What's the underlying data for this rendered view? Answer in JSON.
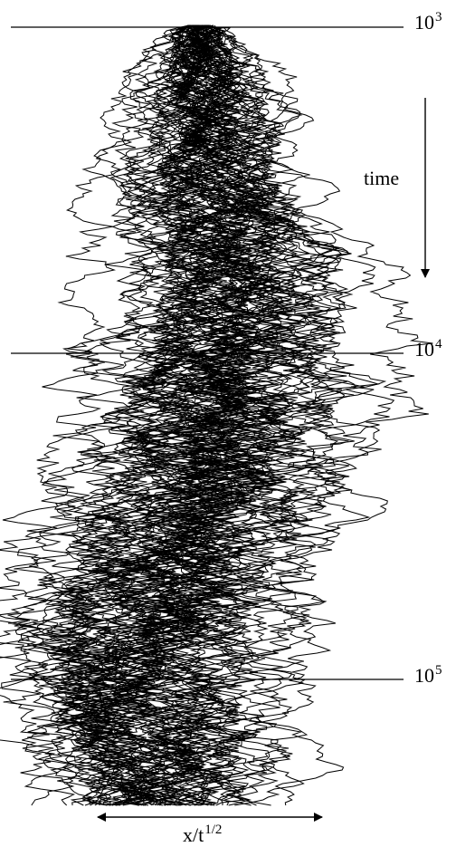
{
  "figure": {
    "time_label": "time",
    "x_axis_label": {
      "base": "x/t",
      "exponent": "1/2"
    },
    "time_markers": [
      {
        "base": "10",
        "exponent": "3"
      },
      {
        "base": "10",
        "exponent": "4"
      },
      {
        "base": "10",
        "exponent": "5"
      }
    ]
  },
  "colors": {
    "ink": "#000000",
    "background": "#ffffff"
  }
}
